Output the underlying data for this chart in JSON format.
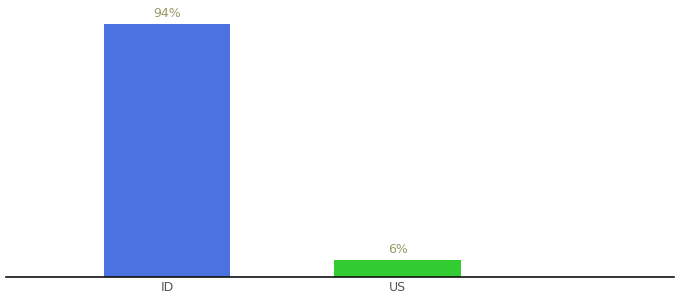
{
  "categories": [
    "ID",
    "US"
  ],
  "values": [
    94,
    6
  ],
  "bar_colors": [
    "#4a72e0",
    "#33cc33"
  ],
  "label_texts": [
    "94%",
    "6%"
  ],
  "background_color": "#ffffff",
  "text_color": "#999966",
  "axis_line_color": "#111111",
  "ylim": [
    0,
    100
  ],
  "bar_width": 0.55,
  "figsize": [
    6.8,
    3.0
  ],
  "dpi": 100,
  "tick_fontsize": 9,
  "label_fontsize": 9,
  "x_positions": [
    1,
    2
  ],
  "xlim": [
    0.3,
    3.2
  ]
}
